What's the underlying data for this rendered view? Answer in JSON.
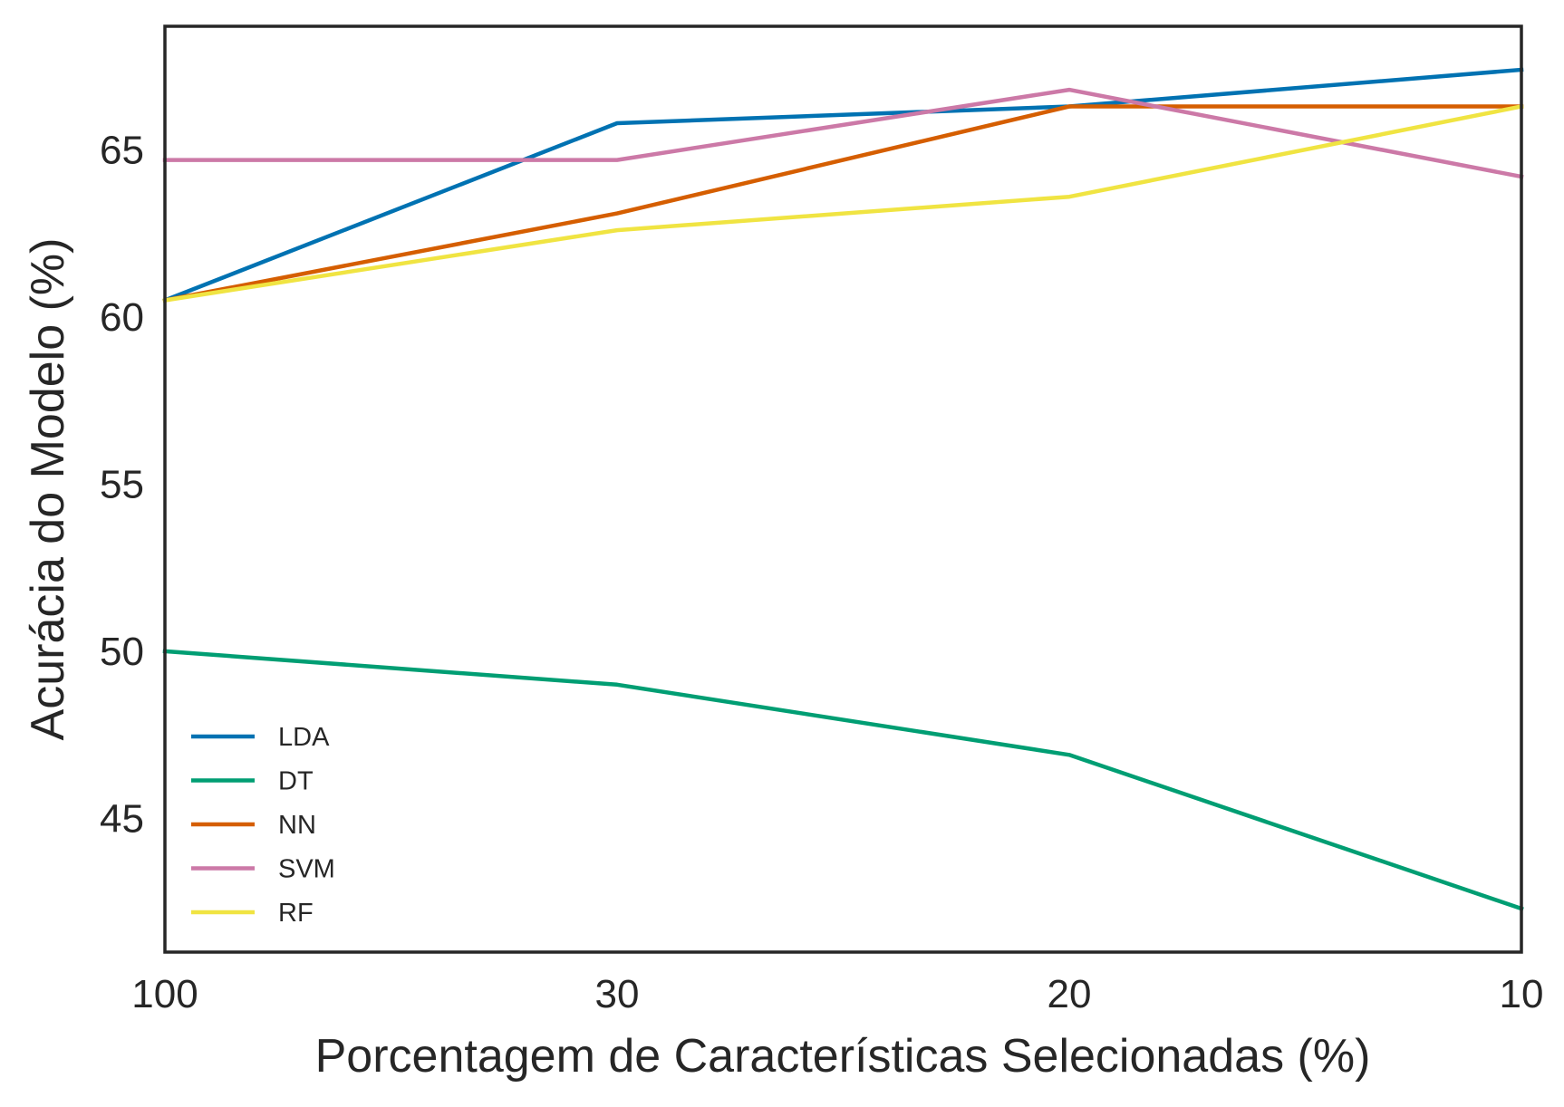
{
  "chart_data": {
    "type": "line",
    "title": "",
    "xlabel": "Porcentagem de Características Selecionadas (%)",
    "ylabel": "Acurácia do Modelo (%)",
    "categories": [
      "100",
      "30",
      "20",
      "10"
    ],
    "ylim": [
      41,
      68.7
    ],
    "yticks": [
      45,
      50,
      55,
      60,
      65
    ],
    "grid": false,
    "legend_position": "lower-left",
    "series": [
      {
        "name": "LDA",
        "color": "#0072b2",
        "values": [
          60.5,
          65.8,
          66.3,
          67.4
        ]
      },
      {
        "name": "DT",
        "color": "#009e73",
        "values": [
          50.0,
          49.0,
          46.9,
          42.3
        ]
      },
      {
        "name": "NN",
        "color": "#d55e00",
        "values": [
          60.5,
          63.1,
          66.3,
          66.3
        ]
      },
      {
        "name": "SVM",
        "color": "#cc79a7",
        "values": [
          64.7,
          64.7,
          66.8,
          64.2
        ]
      },
      {
        "name": "RF",
        "color": "#f0e442",
        "values": [
          60.5,
          62.6,
          63.6,
          66.3
        ]
      }
    ]
  }
}
